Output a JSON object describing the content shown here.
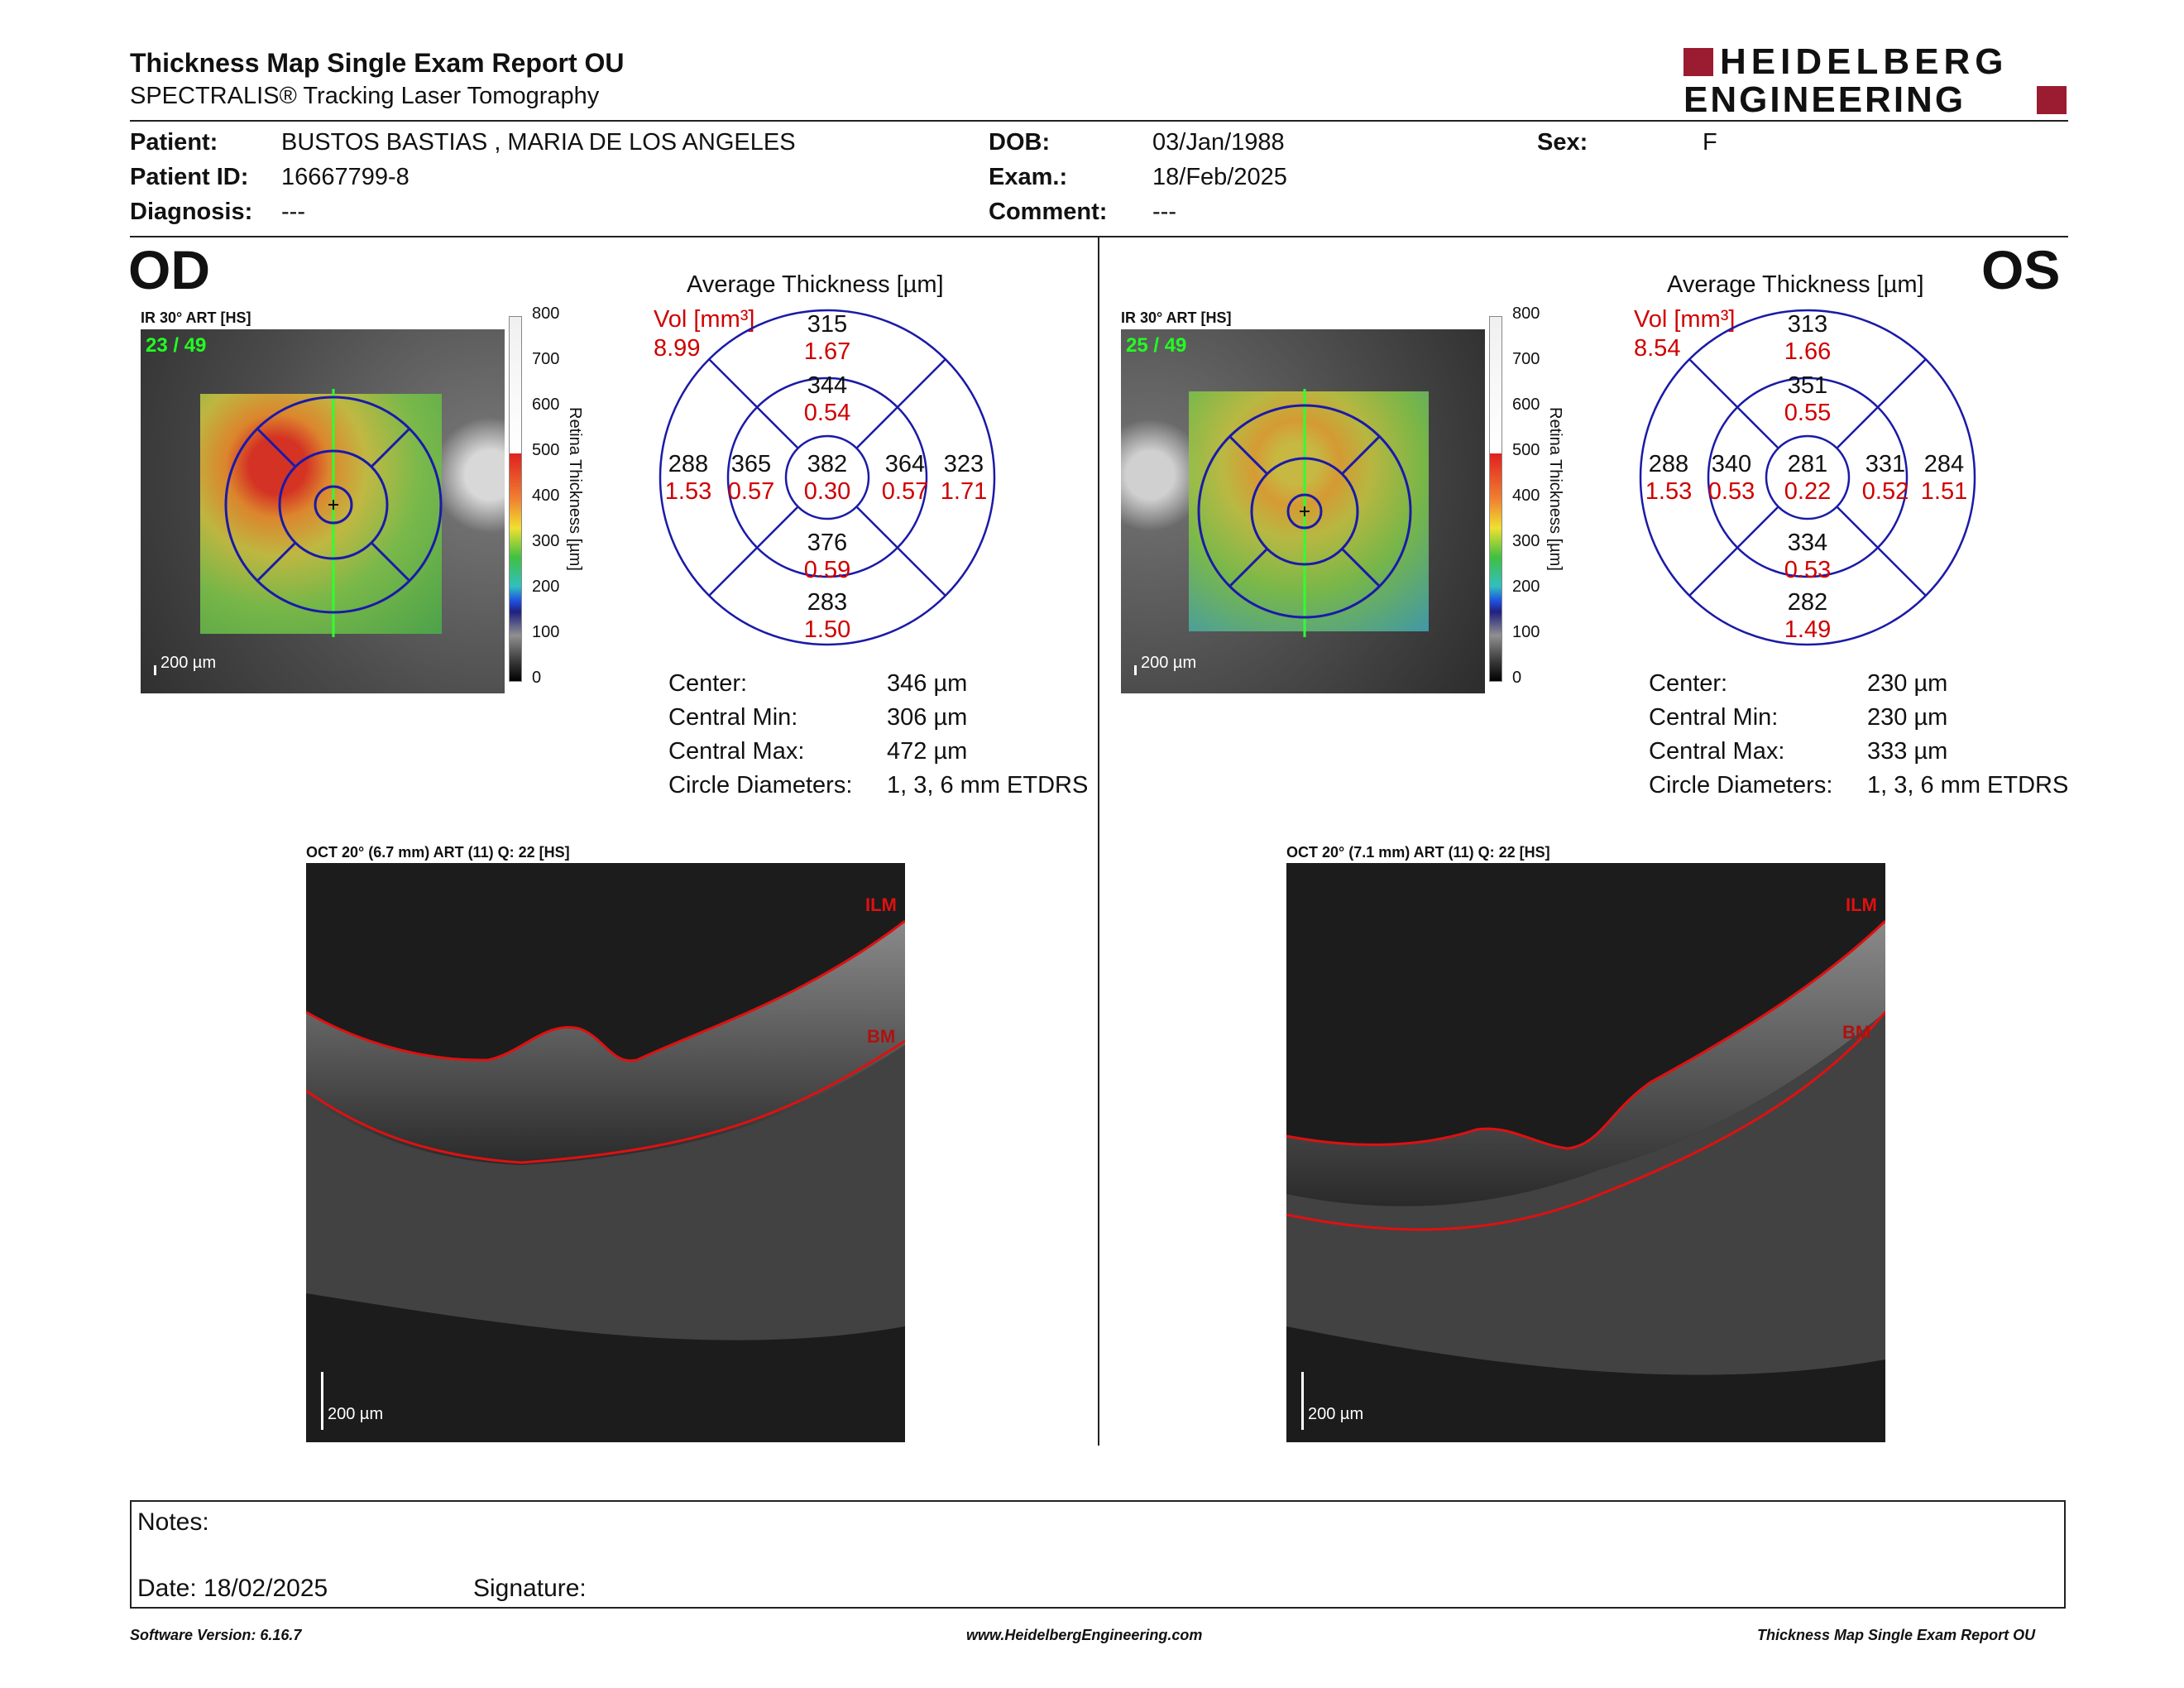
{
  "header": {
    "title": "Thickness Map Single Exam Report OU",
    "subtitle": "SPECTRALIS® Tracking Laser Tomography",
    "logo_line1": "HEIDELBERG",
    "logo_line2": "ENGINEERING",
    "brand_color": "#9b1b30"
  },
  "patient": {
    "patient_label": "Patient:",
    "patient_value": "BUSTOS BASTIAS , MARIA DE LOS ANGELES",
    "id_label": "Patient ID:",
    "id_value": "16667799-8",
    "diagnosis_label": "Diagnosis:",
    "diagnosis_value": "---",
    "dob_label": "DOB:",
    "dob_value": "03/Jan/1988",
    "exam_label": "Exam.:",
    "exam_value": "18/Feb/2025",
    "comment_label": "Comment:",
    "comment_value": "---",
    "sex_label": "Sex:",
    "sex_value": "F"
  },
  "od": {
    "eye": "OD",
    "ir_label": "IR 30° ART [HS]",
    "frame": "23 / 49",
    "scale": "200 µm",
    "colorbar_ticks": [
      "800",
      "700",
      "600",
      "500",
      "400",
      "300",
      "200",
      "100",
      "0"
    ],
    "colorbar_title": "Retina Thickness [µm]",
    "avg_title": "Average Thickness [µm]",
    "vol_label": "Vol [mm³]",
    "vol_value": "8.99",
    "sectors": {
      "center": {
        "t": "382",
        "v": "0.30"
      },
      "inner_sup": {
        "t": "344",
        "v": "0.54"
      },
      "inner_inf": {
        "t": "376",
        "v": "0.59"
      },
      "inner_left": {
        "t": "365",
        "v": "0.57"
      },
      "inner_right": {
        "t": "364",
        "v": "0.57"
      },
      "outer_sup": {
        "t": "315",
        "v": "1.67"
      },
      "outer_inf": {
        "t": "283",
        "v": "1.50"
      },
      "outer_left": {
        "t": "288",
        "v": "1.53"
      },
      "outer_right": {
        "t": "323",
        "v": "1.71"
      }
    },
    "stats": [
      {
        "label": "Center:",
        "value": "346 µm"
      },
      {
        "label": "Central Min:",
        "value": "306 µm"
      },
      {
        "label": "Central Max:",
        "value": "472 µm"
      },
      {
        "label": "Circle Diameters:",
        "value": "1, 3, 6 mm ETDRS"
      }
    ],
    "oct_label": "OCT 20° (6.7 mm) ART (11) Q: 22 [HS]",
    "ilm": "ILM",
    "bm": "BM",
    "oct_scale": "200 µm"
  },
  "os": {
    "eye": "OS",
    "ir_label": "IR 30° ART [HS]",
    "frame": "25 / 49",
    "scale": "200 µm",
    "colorbar_ticks": [
      "800",
      "700",
      "600",
      "500",
      "400",
      "300",
      "200",
      "100",
      "0"
    ],
    "colorbar_title": "Retina Thickness [µm]",
    "avg_title": "Average Thickness [µm]",
    "vol_label": "Vol [mm³]",
    "vol_value": "8.54",
    "sectors": {
      "center": {
        "t": "281",
        "v": "0.22"
      },
      "inner_sup": {
        "t": "351",
        "v": "0.55"
      },
      "inner_inf": {
        "t": "334",
        "v": "0.53"
      },
      "inner_left": {
        "t": "340",
        "v": "0.53"
      },
      "inner_right": {
        "t": "331",
        "v": "0.52"
      },
      "outer_sup": {
        "t": "313",
        "v": "1.66"
      },
      "outer_inf": {
        "t": "282",
        "v": "1.49"
      },
      "outer_left": {
        "t": "288",
        "v": "1.53"
      },
      "outer_right": {
        "t": "284",
        "v": "1.51"
      }
    },
    "stats": [
      {
        "label": "Center:",
        "value": "230 µm"
      },
      {
        "label": "Central Min:",
        "value": "230 µm"
      },
      {
        "label": "Central Max:",
        "value": "333 µm"
      },
      {
        "label": "Circle Diameters:",
        "value": "1, 3, 6 mm ETDRS"
      }
    ],
    "oct_label": "OCT 20° (7.1 mm) ART (11) Q: 22 [HS]",
    "ilm": "ILM",
    "bm": "BM",
    "oct_scale": "200 µm"
  },
  "notes": {
    "notes_label": "Notes:",
    "date_label": "Date: 18/02/2025",
    "signature_label": "Signature:"
  },
  "footer": {
    "software": "Software Version: 6.16.7",
    "website": "www.HeidelbergEngineering.com",
    "report": "Thickness Map Single Exam Report OU"
  }
}
